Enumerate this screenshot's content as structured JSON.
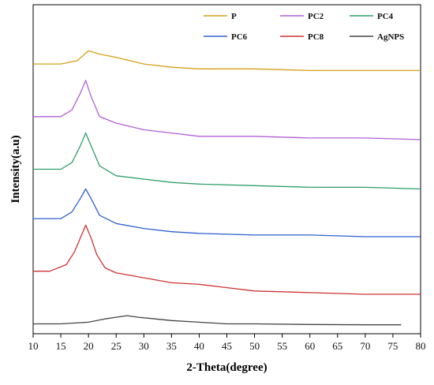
{
  "chart_data": {
    "type": "line",
    "xlabel": "2-Theta(degree)",
    "ylabel": "Intensity(a.u)",
    "xlim": [
      10,
      80
    ],
    "x_ticks": [
      10,
      15,
      20,
      25,
      30,
      35,
      40,
      45,
      50,
      55,
      60,
      65,
      70,
      75,
      80
    ],
    "y_ticks_shown": false,
    "grid": false,
    "legend_position": "top-right",
    "legend_columns": 3,
    "series": [
      {
        "name": "P",
        "color": "#d4a017",
        "x": [
          10,
          15,
          18,
          20,
          22,
          25,
          30,
          35,
          40,
          50,
          60,
          70,
          80
        ],
        "y": [
          0.82,
          0.82,
          0.83,
          0.86,
          0.85,
          0.84,
          0.82,
          0.81,
          0.805,
          0.805,
          0.8,
          0.8,
          0.8
        ]
      },
      {
        "name": "PC2",
        "color": "#b25fd8",
        "x": [
          10,
          15,
          17,
          18.5,
          19.5,
          20.5,
          22,
          25,
          30,
          35,
          40,
          50,
          60,
          70,
          80
        ],
        "y": [
          0.66,
          0.66,
          0.68,
          0.73,
          0.77,
          0.72,
          0.66,
          0.64,
          0.62,
          0.61,
          0.6,
          0.6,
          0.595,
          0.595,
          0.59
        ]
      },
      {
        "name": "PC4",
        "color": "#2e9e6b",
        "x": [
          10,
          15,
          17,
          18.5,
          19.5,
          20.5,
          22,
          25,
          30,
          35,
          40,
          50,
          60,
          70,
          80
        ],
        "y": [
          0.5,
          0.5,
          0.52,
          0.57,
          0.61,
          0.57,
          0.51,
          0.48,
          0.47,
          0.46,
          0.455,
          0.45,
          0.445,
          0.445,
          0.44
        ]
      },
      {
        "name": "PC6",
        "color": "#2f5fd0",
        "x": [
          10,
          15,
          17,
          18.5,
          19.5,
          20.5,
          22,
          25,
          30,
          35,
          40,
          50,
          60,
          70,
          80
        ],
        "y": [
          0.35,
          0.35,
          0.37,
          0.41,
          0.44,
          0.41,
          0.36,
          0.335,
          0.32,
          0.31,
          0.305,
          0.3,
          0.3,
          0.295,
          0.295
        ]
      },
      {
        "name": "PC8",
        "color": "#cc3333",
        "x": [
          10,
          13,
          16,
          17.5,
          18.5,
          19.5,
          20.5,
          21.5,
          23,
          25,
          30,
          35,
          40,
          45,
          50,
          60,
          70,
          80
        ],
        "y": [
          0.19,
          0.19,
          0.21,
          0.25,
          0.29,
          0.33,
          0.29,
          0.24,
          0.2,
          0.185,
          0.17,
          0.155,
          0.15,
          0.14,
          0.13,
          0.125,
          0.12,
          0.12
        ]
      },
      {
        "name": "AgNPS",
        "color": "#444444",
        "x": [
          10,
          15,
          20,
          23,
          25,
          27,
          29,
          32,
          35,
          40,
          45,
          50,
          60,
          70,
          76.5
        ],
        "y": [
          0.03,
          0.03,
          0.035,
          0.045,
          0.05,
          0.055,
          0.05,
          0.045,
          0.04,
          0.035,
          0.03,
          0.03,
          0.028,
          0.027,
          0.027
        ]
      }
    ]
  }
}
